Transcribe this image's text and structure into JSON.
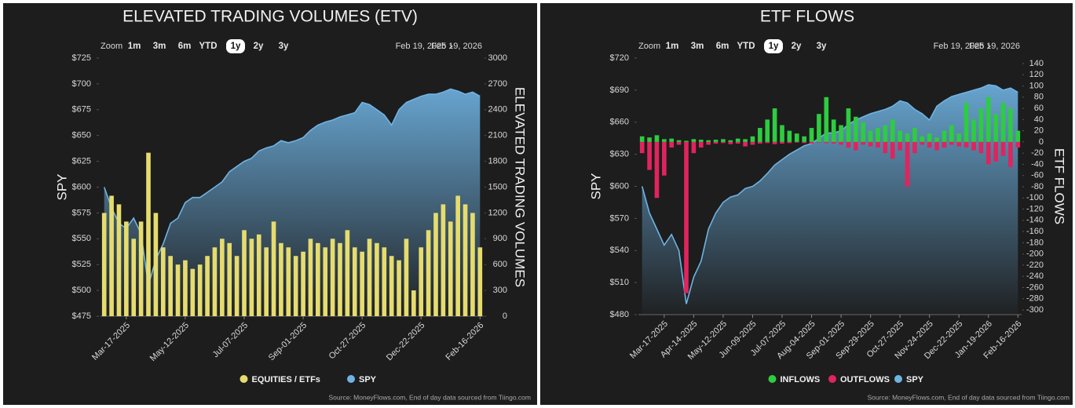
{
  "chart_data": [
    {
      "type": "bar",
      "title": "ELEVATED TRADING VOLUMES (ETV)",
      "zoom_label": "Zoom",
      "zoom_options": [
        "1m",
        "3m",
        "6m",
        "YTD",
        "1y",
        "2y",
        "3y"
      ],
      "selected_zoom": "1y",
      "range_start": "Feb 19, 2025",
      "range_end": "Feb 19, 2026",
      "ylabel": "SPY",
      "y2label": "ELEVATED TRADING VOLUMES",
      "categories": [
        null,
        null,
        null,
        "Mar-17-2025",
        null,
        null,
        null,
        null,
        null,
        null,
        null,
        "May-12-2025",
        null,
        null,
        null,
        null,
        null,
        null,
        null,
        "Jul-07-2025",
        null,
        null,
        null,
        null,
        null,
        null,
        null,
        "Sep-01-2025",
        null,
        null,
        null,
        null,
        null,
        null,
        null,
        "Oct-27-2025",
        null,
        null,
        null,
        null,
        null,
        null,
        null,
        "Dec-22-2025",
        null,
        null,
        null,
        null,
        null,
        null,
        null,
        "Feb-16-2026"
      ],
      "series": [
        {
          "name": "EQUITIES / ETFs",
          "type": "bar",
          "axis": "y2",
          "color": "#e6dc6e",
          "values": [
            1200,
            1400,
            1300,
            1100,
            900,
            1100,
            1900,
            1200,
            800,
            700,
            600,
            650,
            550,
            600,
            700,
            800,
            900,
            850,
            700,
            1000,
            900,
            950,
            800,
            1100,
            850,
            800,
            700,
            750,
            900,
            850,
            800,
            900,
            850,
            1000,
            800,
            750,
            900,
            850,
            800,
            700,
            650,
            900,
            300,
            800,
            1000,
            1200,
            1300,
            1100,
            1400,
            1300,
            1200,
            800
          ]
        },
        {
          "name": "SPY",
          "type": "area",
          "color": "#6fb3e3",
          "values": [
            600,
            580,
            565,
            560,
            570,
            555,
            505,
            530,
            545,
            565,
            570,
            585,
            590,
            590,
            595,
            600,
            605,
            615,
            620,
            625,
            628,
            635,
            638,
            640,
            645,
            643,
            645,
            648,
            655,
            660,
            663,
            665,
            668,
            670,
            672,
            682,
            680,
            675,
            670,
            660,
            675,
            682,
            685,
            688,
            690,
            690,
            692,
            695,
            693,
            690,
            692,
            688
          ]
        }
      ],
      "ylim": [
        475,
        725
      ],
      "yticks": [
        {
          "value": 475,
          "label": "$475"
        },
        {
          "value": 500,
          "label": "$500"
        },
        {
          "value": 525,
          "label": "$525"
        },
        {
          "value": 550,
          "label": "$550"
        },
        {
          "value": 575,
          "label": "$575"
        },
        {
          "value": 600,
          "label": "$600"
        },
        {
          "value": 625,
          "label": "$625"
        },
        {
          "value": 650,
          "label": "$650"
        },
        {
          "value": 675,
          "label": "$675"
        },
        {
          "value": 700,
          "label": "$700"
        },
        {
          "value": 725,
          "label": "$725"
        }
      ],
      "y2lim": [
        0,
        3000
      ],
      "y2ticks": [
        0,
        300,
        600,
        900,
        1200,
        1500,
        1800,
        2100,
        2400,
        2700,
        3000
      ],
      "source": "Source: MoneyFlows.com, End of day data sourced from Tiingo.com"
    },
    {
      "type": "bar",
      "title": "ETF FLOWS",
      "zoom_label": "Zoom",
      "zoom_options": [
        "1m",
        "3m",
        "6m",
        "YTD",
        "1y",
        "2y",
        "3y"
      ],
      "selected_zoom": "1y",
      "range_start": "Feb 19, 2025",
      "range_end": "Feb 19, 2026",
      "ylabel": "SPY",
      "y2label": "ETF FLOWS",
      "categories": [
        null,
        null,
        null,
        "Mar-17-2025",
        null,
        null,
        null,
        "Apr-14-2025",
        null,
        null,
        null,
        "May-12-2025",
        null,
        null,
        null,
        "Jun-09-2025",
        null,
        null,
        null,
        "Jul-07-2025",
        null,
        null,
        null,
        "Aug-04-2025",
        null,
        null,
        null,
        "Sep-01-2025",
        null,
        null,
        null,
        "Sep-29-2025",
        null,
        null,
        null,
        "Oct-27-2025",
        null,
        null,
        null,
        "Nov-24-2025",
        null,
        null,
        null,
        "Dec-22-2025",
        null,
        null,
        null,
        "Jan-19-2026",
        null,
        null,
        null,
        "Feb-16-2026"
      ],
      "series": [
        {
          "name": "INFLOWS",
          "type": "bar",
          "axis": "y2",
          "color": "#2ecc40",
          "values": [
            10,
            8,
            12,
            5,
            6,
            3,
            2,
            5,
            4,
            3,
            4,
            5,
            3,
            6,
            5,
            10,
            25,
            40,
            60,
            30,
            20,
            15,
            10,
            25,
            50,
            80,
            40,
            30,
            60,
            45,
            35,
            20,
            25,
            30,
            40,
            20,
            15,
            25,
            10,
            15,
            8,
            20,
            30,
            15,
            70,
            40,
            60,
            80,
            50,
            70,
            60,
            20
          ]
        },
        {
          "name": "OUTFLOWS",
          "type": "bar",
          "axis": "y2",
          "color": "#e0245e",
          "values": [
            -20,
            -50,
            -100,
            -60,
            -10,
            -5,
            -270,
            -20,
            -10,
            -5,
            -3,
            -2,
            -4,
            -3,
            -8,
            -5,
            -3,
            -2,
            -4,
            -3,
            -2,
            -1,
            -2,
            -3,
            -1,
            -2,
            -3,
            -5,
            -10,
            -15,
            -5,
            -8,
            -10,
            -20,
            -30,
            -15,
            -80,
            -20,
            -5,
            -10,
            -15,
            -10,
            -5,
            -8,
            -10,
            -15,
            -20,
            -40,
            -35,
            -25,
            -45,
            -10
          ]
        },
        {
          "name": "SPY",
          "type": "area",
          "color": "#6fb3e3",
          "values": [
            600,
            575,
            560,
            545,
            555,
            540,
            490,
            515,
            530,
            560,
            575,
            585,
            590,
            592,
            598,
            600,
            605,
            612,
            620,
            625,
            630,
            634,
            638,
            640,
            645,
            650,
            650,
            652,
            658,
            662,
            665,
            668,
            670,
            672,
            675,
            680,
            678,
            672,
            668,
            662,
            675,
            680,
            684,
            686,
            688,
            690,
            692,
            695,
            694,
            690,
            692,
            688
          ]
        }
      ],
      "ylim": [
        480,
        720
      ],
      "yticks": [
        {
          "value": 480,
          "label": "$480"
        },
        {
          "value": 510,
          "label": "$510"
        },
        {
          "value": 540,
          "label": "$540"
        },
        {
          "value": 570,
          "label": "$570"
        },
        {
          "value": 600,
          "label": "$600"
        },
        {
          "value": 630,
          "label": "$630"
        },
        {
          "value": 660,
          "label": "$660"
        },
        {
          "value": 690,
          "label": "$690"
        },
        {
          "value": 720,
          "label": "$720"
        }
      ],
      "y2lim": [
        -300,
        140
      ],
      "y2ticks": [
        -300,
        -280,
        -260,
        -240,
        -220,
        -200,
        -180,
        -160,
        -140,
        -120,
        -100,
        -80,
        -60,
        -40,
        -20,
        0,
        20,
        40,
        60,
        80,
        100,
        120,
        140
      ],
      "source": "Source: MoneyFlows.com, End of day data sourced from Tiingo.com"
    }
  ]
}
